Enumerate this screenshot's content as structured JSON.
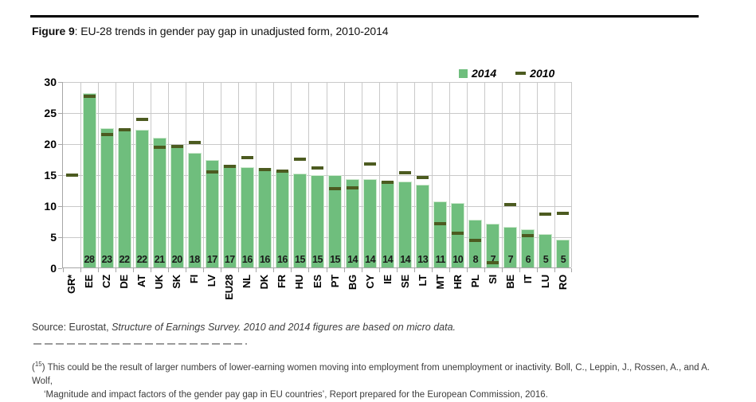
{
  "title": {
    "bold": "Figure 9",
    "rest": ": EU-28 trends in gender pay gap in unadjusted form, 2010-2014"
  },
  "chart_data": {
    "type": "bar",
    "title": "Figure 9: EU-28 trends in gender pay gap in unadjusted form, 2010-2014",
    "categories": [
      "GR*",
      "EE",
      "CZ",
      "DE",
      "AT",
      "UK",
      "SK",
      "FI",
      "LV",
      "EU28",
      "NL",
      "DK",
      "FR",
      "HU",
      "ES",
      "PT",
      "BG",
      "CY",
      "IE",
      "SE",
      "LT",
      "MT",
      "HR",
      "PL",
      "SI",
      "BE",
      "IT",
      "LU",
      "RO"
    ],
    "series": [
      {
        "name": "2014",
        "marker": "bar",
        "color": "#6fbe7d",
        "values": [
          null,
          28.1,
          22.5,
          22.3,
          22.2,
          20.9,
          19.7,
          18.4,
          17.3,
          16.6,
          16.1,
          16.0,
          15.5,
          15.1,
          14.9,
          14.9,
          14.2,
          14.2,
          13.9,
          13.8,
          13.3,
          10.6,
          10.4,
          7.7,
          7.0,
          6.6,
          6.1,
          5.4,
          4.5
        ],
        "data_labels": [
          null,
          "28",
          "23",
          "22",
          "22",
          "21",
          "20",
          "18",
          "17",
          "17",
          "16",
          "16",
          "16",
          "15",
          "15",
          "15",
          "14",
          "14",
          "14",
          "14",
          "13",
          "11",
          "10",
          "8",
          "7",
          "7",
          "6",
          "5",
          "5"
        ]
      },
      {
        "name": "2010",
        "marker": "dash",
        "color": "#4c5b20",
        "values": [
          15.0,
          27.7,
          21.6,
          22.3,
          24.0,
          19.5,
          19.6,
          20.3,
          15.5,
          16.4,
          17.8,
          15.9,
          15.6,
          17.6,
          16.2,
          12.8,
          13.0,
          16.8,
          13.9,
          15.4,
          14.6,
          7.2,
          5.7,
          4.5,
          0.9,
          10.2,
          5.3,
          8.7,
          8.8
        ]
      }
    ],
    "ylim": [
      0,
      30
    ],
    "yticks": [
      0,
      5,
      10,
      15,
      20,
      25,
      30
    ],
    "grid": true,
    "legend_position": "top-right",
    "colors": {
      "gridline": "#c9c9c9",
      "axis": "#a6a6a6",
      "bar_border": "#cfe9cf"
    }
  },
  "source": {
    "plain": "Source: Eurostat, ",
    "italic": "Structure of Earnings Survey. 2010 and 2014 figures are based on micro data."
  },
  "footnote": {
    "marker": "15",
    "text1": " This could be the result of larger numbers of lower-earning women moving into employment from unemployment or inactivity. Boll, C., Leppin, J., Rossen, A., and A. Wolf,",
    "text2": "‘Magnitude and impact factors of the gender pay gap in EU countries’, Report prepared for the European Commission, 2016."
  }
}
